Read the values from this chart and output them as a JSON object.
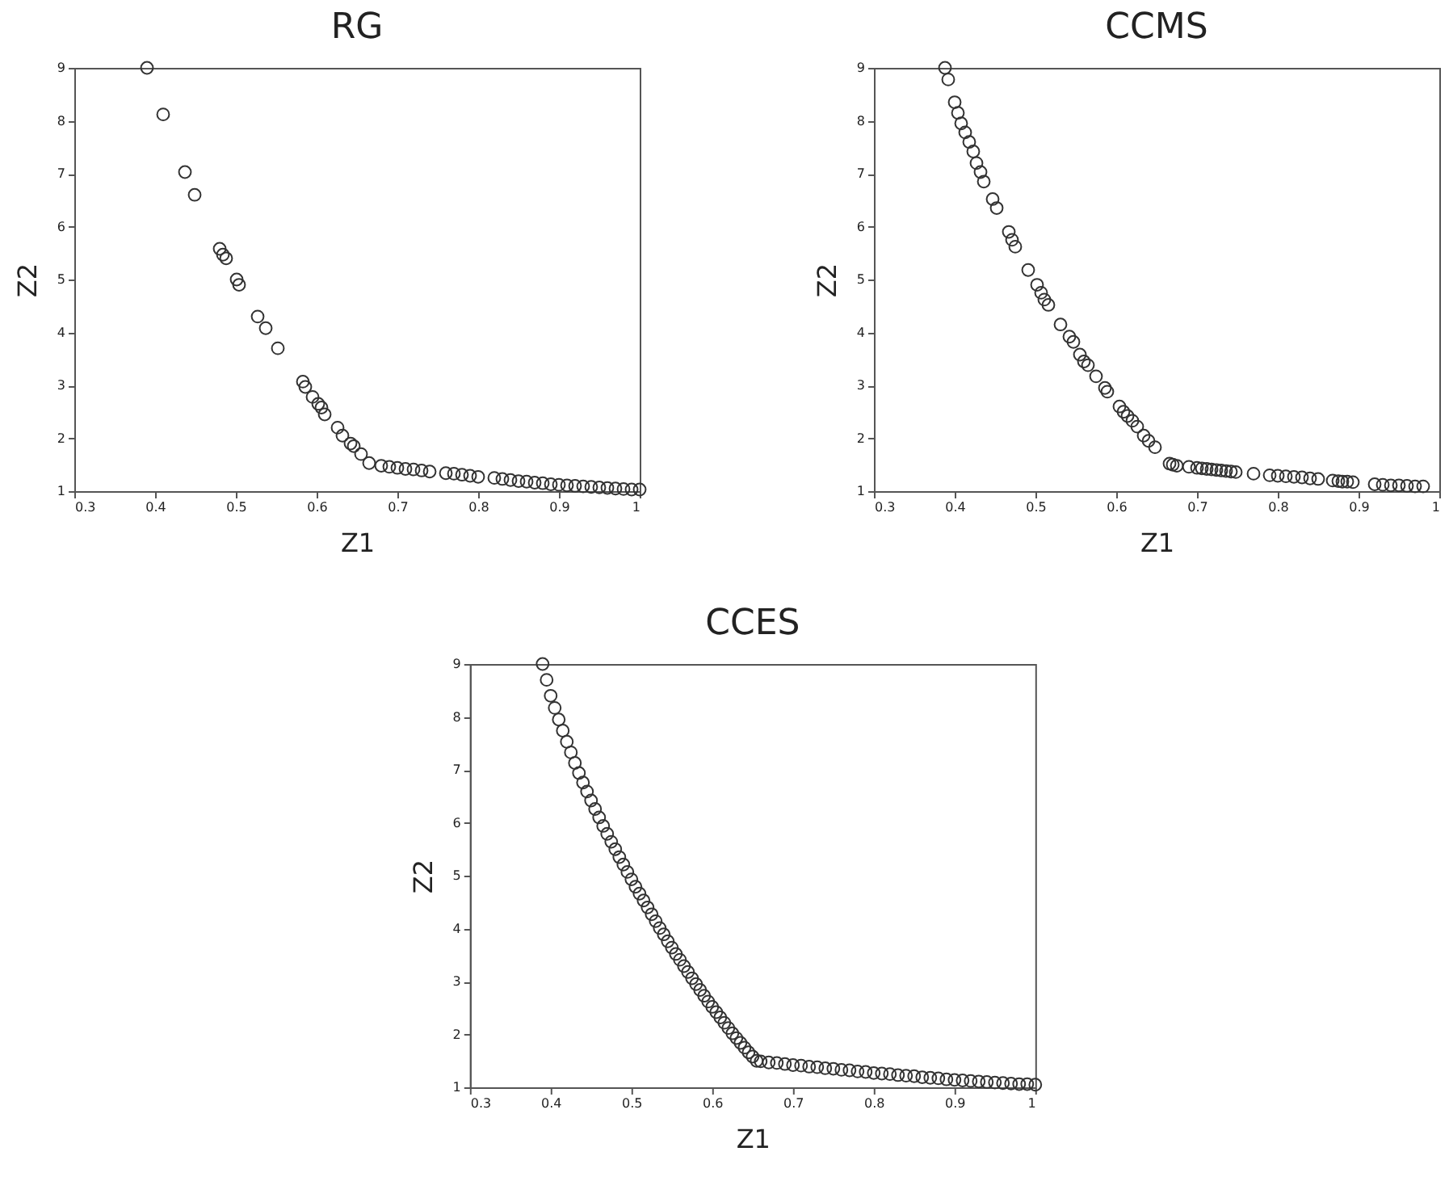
{
  "chart_data": [
    {
      "type": "scatter",
      "title": "RG",
      "xlabel": "Z1",
      "ylabel": "Z2",
      "xlim": [
        0.3,
        1
      ],
      "ylim": [
        1,
        9
      ],
      "xticks": [
        0.3,
        0.4,
        0.5,
        0.6,
        0.7,
        0.8,
        0.9,
        1
      ],
      "yticks": [
        1,
        2,
        3,
        4,
        5,
        6,
        7,
        8,
        9
      ],
      "marker": "circle",
      "grid": false,
      "series": [
        {
          "color": "#333333",
          "x": [
            0.39,
            0.41,
            0.437,
            0.449,
            0.48,
            0.484,
            0.488,
            0.501,
            0.504,
            0.527,
            0.537,
            0.552,
            0.583,
            0.586,
            0.595,
            0.602,
            0.606,
            0.61,
            0.626,
            0.632,
            0.642,
            0.646,
            0.655,
            0.665,
            0.68,
            0.69,
            0.7,
            0.71,
            0.72,
            0.73,
            0.74,
            0.76,
            0.77,
            0.78,
            0.79,
            0.8,
            0.82,
            0.83,
            0.84,
            0.85,
            0.86,
            0.87,
            0.88,
            0.89,
            0.9,
            0.91,
            0.92,
            0.93,
            0.94,
            0.95,
            0.96,
            0.97,
            0.98,
            0.99,
            1.0
          ],
          "values": [
            9.0,
            8.12,
            7.03,
            6.6,
            5.58,
            5.47,
            5.4,
            5.0,
            4.9,
            4.3,
            4.08,
            3.7,
            3.07,
            2.97,
            2.78,
            2.65,
            2.58,
            2.45,
            2.2,
            2.05,
            1.9,
            1.85,
            1.7,
            1.53,
            1.48,
            1.46,
            1.44,
            1.42,
            1.41,
            1.39,
            1.37,
            1.34,
            1.33,
            1.31,
            1.29,
            1.27,
            1.25,
            1.23,
            1.21,
            1.19,
            1.18,
            1.16,
            1.15,
            1.13,
            1.12,
            1.11,
            1.1,
            1.09,
            1.08,
            1.07,
            1.06,
            1.05,
            1.04,
            1.03,
            1.03
          ]
        }
      ]
    },
    {
      "type": "scatter",
      "title": "CCMS",
      "xlabel": "Z1",
      "ylabel": "Z2",
      "xlim": [
        0.3,
        1
      ],
      "ylim": [
        1,
        9
      ],
      "xticks": [
        0.3,
        0.4,
        0.5,
        0.6,
        0.7,
        0.8,
        0.9,
        1
      ],
      "yticks": [
        1,
        2,
        3,
        4,
        5,
        6,
        7,
        8,
        9
      ],
      "marker": "circle",
      "grid": false,
      "series": [
        {
          "color": "#333333",
          "x": [
            0.388,
            0.392,
            0.4,
            0.404,
            0.408,
            0.413,
            0.418,
            0.423,
            0.427,
            0.432,
            0.436,
            0.447,
            0.452,
            0.467,
            0.471,
            0.475,
            0.491,
            0.502,
            0.507,
            0.511,
            0.516,
            0.531,
            0.542,
            0.547,
            0.555,
            0.56,
            0.565,
            0.575,
            0.586,
            0.589,
            0.604,
            0.609,
            0.614,
            0.62,
            0.626,
            0.634,
            0.64,
            0.648,
            0.666,
            0.67,
            0.675,
            0.69,
            0.7,
            0.706,
            0.712,
            0.718,
            0.724,
            0.73,
            0.736,
            0.742,
            0.748,
            0.77,
            0.79,
            0.8,
            0.81,
            0.82,
            0.83,
            0.84,
            0.85,
            0.868,
            0.875,
            0.88,
            0.886,
            0.893,
            0.92,
            0.93,
            0.94,
            0.95,
            0.96,
            0.97,
            0.98
          ],
          "values": [
            9.0,
            8.78,
            8.35,
            8.15,
            7.95,
            7.78,
            7.6,
            7.42,
            7.2,
            7.03,
            6.85,
            6.52,
            6.35,
            5.9,
            5.75,
            5.62,
            5.18,
            4.9,
            4.75,
            4.62,
            4.52,
            4.15,
            3.92,
            3.82,
            3.58,
            3.45,
            3.38,
            3.17,
            2.95,
            2.88,
            2.6,
            2.5,
            2.42,
            2.33,
            2.22,
            2.05,
            1.95,
            1.83,
            1.52,
            1.5,
            1.48,
            1.46,
            1.44,
            1.43,
            1.42,
            1.41,
            1.4,
            1.39,
            1.38,
            1.37,
            1.36,
            1.33,
            1.3,
            1.29,
            1.28,
            1.27,
            1.26,
            1.24,
            1.23,
            1.2,
            1.19,
            1.18,
            1.18,
            1.17,
            1.13,
            1.12,
            1.11,
            1.11,
            1.1,
            1.09,
            1.09
          ]
        }
      ]
    },
    {
      "type": "scatter",
      "title": "CCES",
      "xlabel": "Z1",
      "ylabel": "Z2",
      "xlim": [
        0.3,
        1
      ],
      "ylim": [
        1,
        9
      ],
      "xticks": [
        0.3,
        0.4,
        0.5,
        0.6,
        0.7,
        0.8,
        0.9,
        1
      ],
      "yticks": [
        1,
        2,
        3,
        4,
        5,
        6,
        7,
        8,
        9
      ],
      "marker": "circle",
      "grid": false,
      "series": [
        {
          "color": "#333333",
          "x": [
            0.39,
            0.395,
            0.4,
            0.405,
            0.41,
            0.415,
            0.42,
            0.425,
            0.43,
            0.435,
            0.44,
            0.445,
            0.45,
            0.455,
            0.46,
            0.465,
            0.47,
            0.475,
            0.48,
            0.485,
            0.49,
            0.495,
            0.5,
            0.505,
            0.51,
            0.515,
            0.52,
            0.525,
            0.53,
            0.535,
            0.54,
            0.545,
            0.55,
            0.555,
            0.56,
            0.565,
            0.57,
            0.575,
            0.58,
            0.585,
            0.59,
            0.595,
            0.6,
            0.605,
            0.61,
            0.615,
            0.62,
            0.625,
            0.63,
            0.635,
            0.64,
            0.645,
            0.65,
            0.655,
            0.66,
            0.67,
            0.68,
            0.69,
            0.7,
            0.71,
            0.72,
            0.73,
            0.74,
            0.75,
            0.76,
            0.77,
            0.78,
            0.79,
            0.8,
            0.81,
            0.82,
            0.83,
            0.84,
            0.85,
            0.86,
            0.87,
            0.88,
            0.89,
            0.9,
            0.91,
            0.92,
            0.93,
            0.94,
            0.95,
            0.96,
            0.97,
            0.98,
            0.99,
            1.0
          ],
          "values": [
            9.0,
            8.7,
            8.4,
            8.17,
            7.95,
            7.74,
            7.53,
            7.33,
            7.13,
            6.94,
            6.76,
            6.59,
            6.42,
            6.26,
            6.1,
            5.94,
            5.79,
            5.64,
            5.5,
            5.35,
            5.21,
            5.07,
            4.93,
            4.79,
            4.66,
            4.53,
            4.4,
            4.27,
            4.14,
            4.01,
            3.89,
            3.76,
            3.64,
            3.52,
            3.41,
            3.29,
            3.18,
            3.06,
            2.95,
            2.84,
            2.73,
            2.62,
            2.52,
            2.42,
            2.32,
            2.22,
            2.12,
            2.02,
            1.93,
            1.84,
            1.75,
            1.66,
            1.58,
            1.5,
            1.49,
            1.47,
            1.46,
            1.44,
            1.42,
            1.41,
            1.39,
            1.38,
            1.36,
            1.35,
            1.33,
            1.32,
            1.3,
            1.29,
            1.27,
            1.26,
            1.25,
            1.23,
            1.22,
            1.21,
            1.19,
            1.18,
            1.17,
            1.15,
            1.14,
            1.13,
            1.12,
            1.11,
            1.1,
            1.09,
            1.08,
            1.07,
            1.06,
            1.06,
            1.05
          ]
        }
      ]
    }
  ]
}
